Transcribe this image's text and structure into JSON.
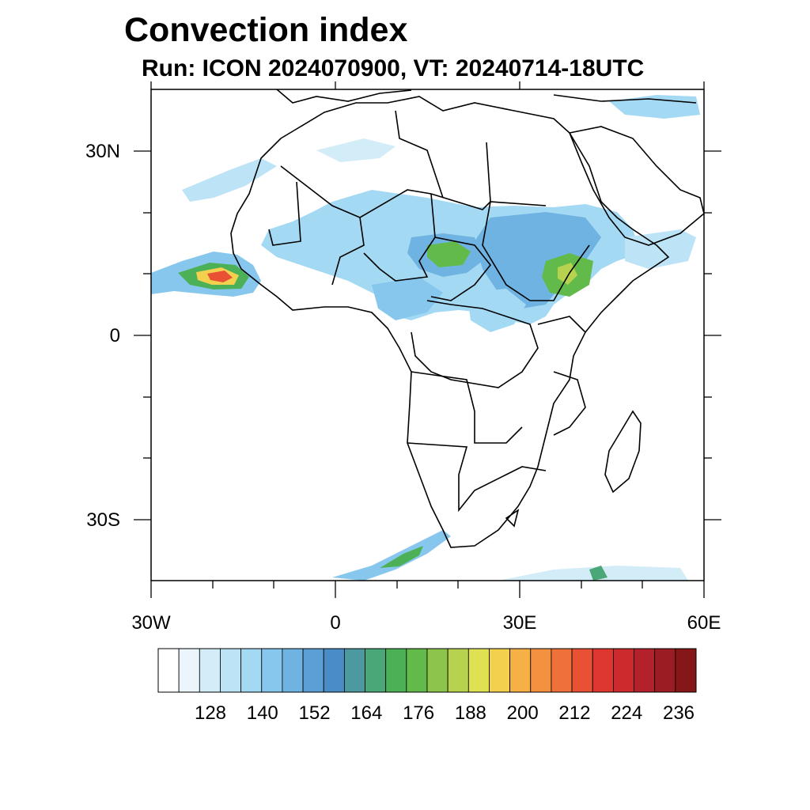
{
  "title": "Convection index",
  "subtitle": "Run: ICON 2024070900,  VT: 20240714-18UTC",
  "axes": {
    "x_ticks": [
      "30W",
      "0",
      "30E",
      "60E"
    ],
    "y_ticks": [
      "30N",
      "0",
      "30S"
    ],
    "lon_range": [
      -30,
      60
    ],
    "lat_range": [
      -40,
      40
    ]
  },
  "colorbar": {
    "labels": [
      "128",
      "140",
      "152",
      "164",
      "176",
      "188",
      "200",
      "212",
      "224",
      "236"
    ],
    "colors": [
      "#ffffff",
      "#eaf6fc",
      "#d2ecf8",
      "#bde3f6",
      "#a4d9f4",
      "#87c7ee",
      "#6fb3e3",
      "#5b9fd6",
      "#4a8dc6",
      "#4c9aa0",
      "#4aa777",
      "#4cb156",
      "#62ba4a",
      "#8cc44c",
      "#b6d24f",
      "#dfe052",
      "#f3d04e",
      "#f6b146",
      "#f39140",
      "#ee703a",
      "#e85133",
      "#dd3730",
      "#cc2a2d",
      "#b3222b",
      "#9c1c24",
      "#861719"
    ]
  },
  "map_data": {
    "projection": "cylindrical equidistant",
    "extent_lon": [
      -30,
      60
    ],
    "extent_lat": [
      -40,
      40
    ],
    "features": "Africa country boundaries and coastlines; shaded convection index",
    "max_region": "West Africa coast near 18W-12W, 10N"
  }
}
